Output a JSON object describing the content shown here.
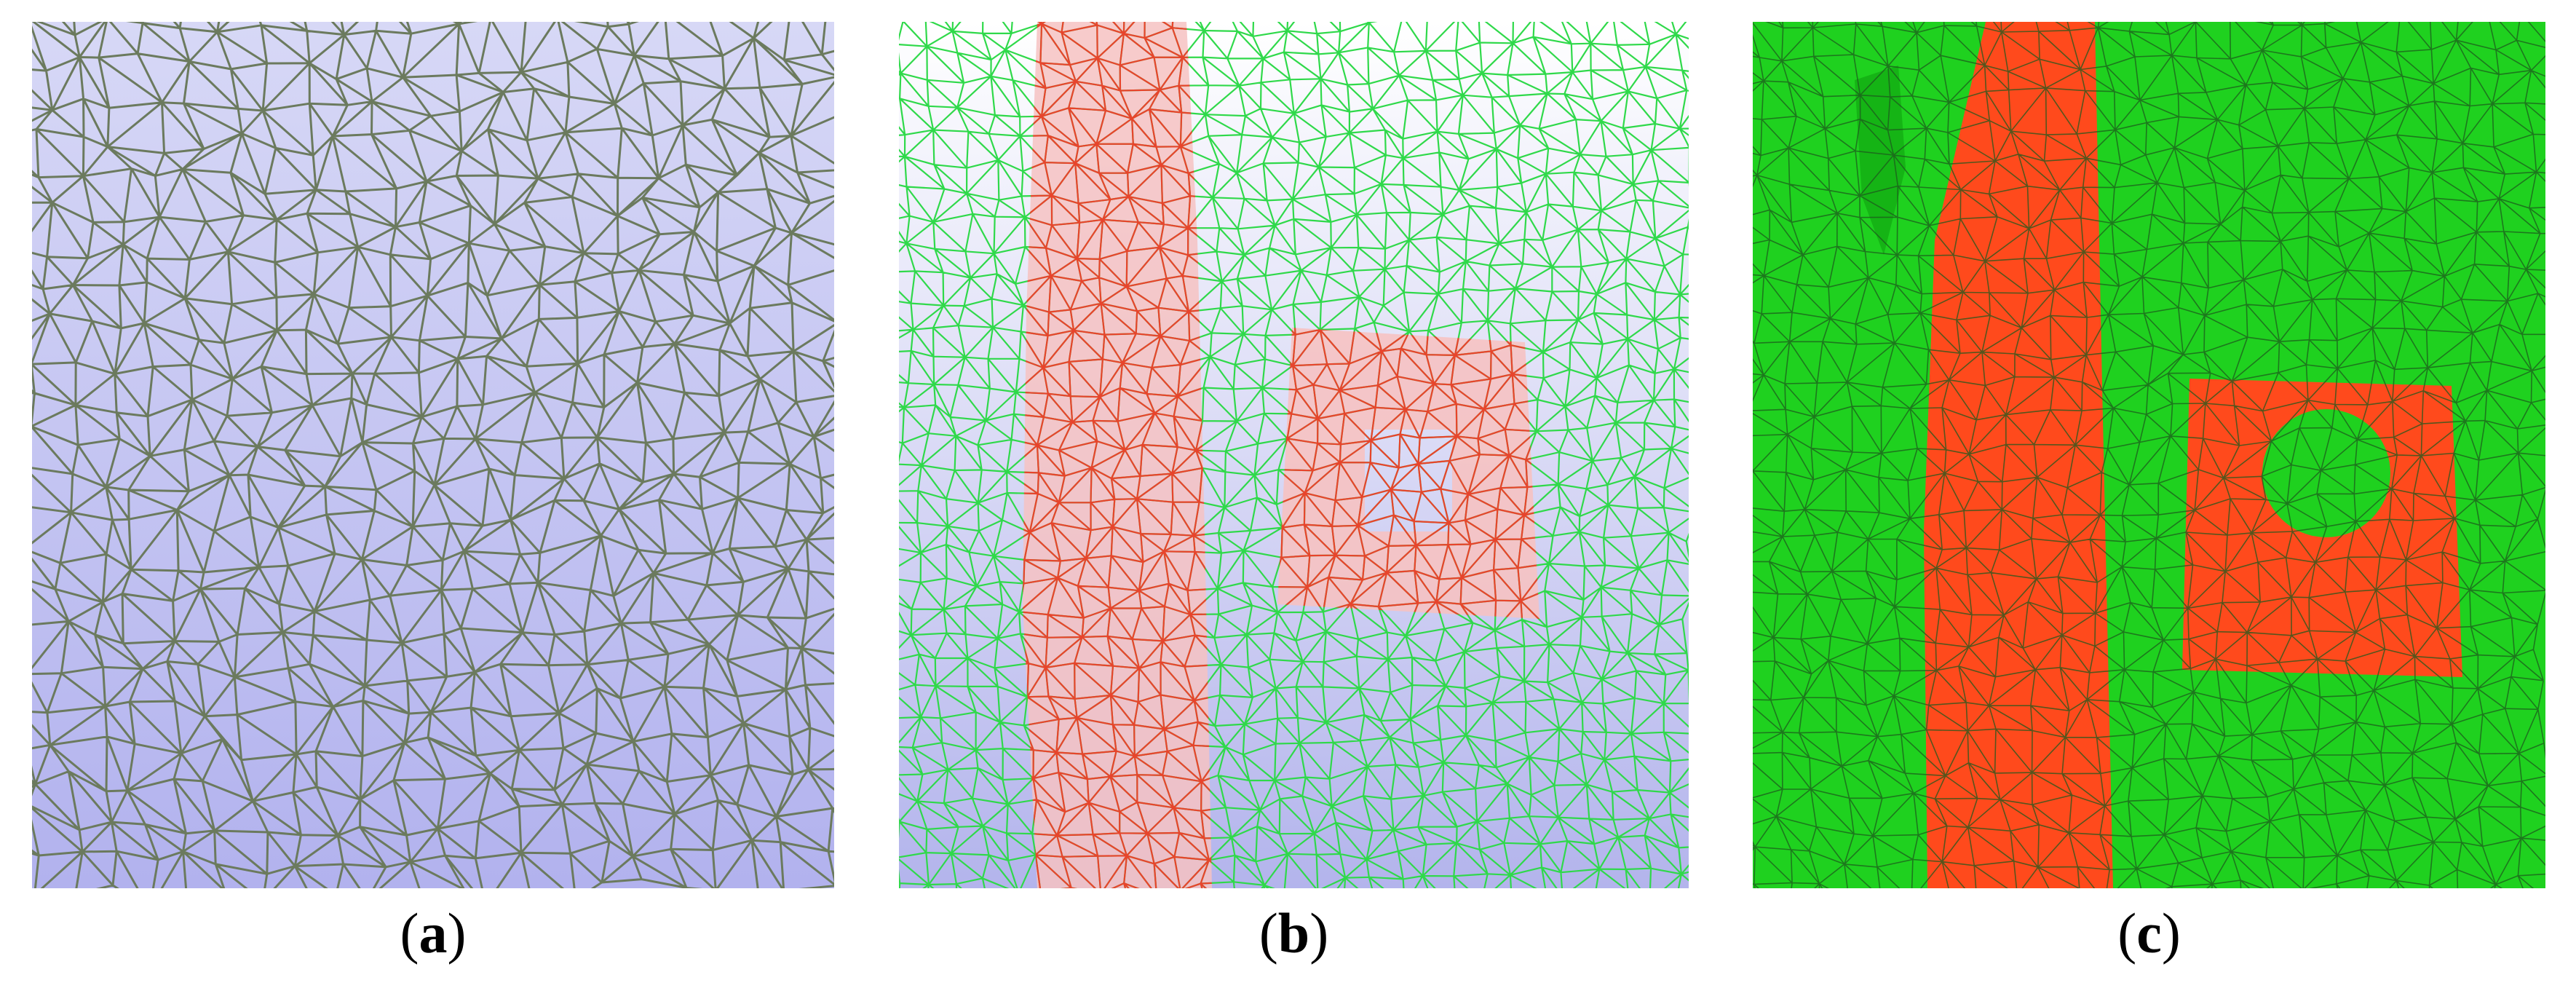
{
  "panels": [
    {
      "id": "a",
      "caption_open": "(",
      "caption_letter": "a",
      "caption_close": ")",
      "colors": {
        "background_top": "#d7d8f6",
        "background_bottom": "#b2b2ee",
        "mesh_line": "#6b7a5e"
      }
    },
    {
      "id": "b",
      "caption_open": "(",
      "caption_letter": "b",
      "caption_close": ")",
      "colors": {
        "background_top": "#ffffff",
        "background_bottom": "#b3b4ec",
        "mesh_line": "#2fd94a",
        "highlight_line": "#e8442c",
        "highlight_fill": "#f6c2c2"
      }
    },
    {
      "id": "c",
      "caption_open": "(",
      "caption_letter": "c",
      "caption_close": ")",
      "colors": {
        "surface": "#1fd11f",
        "mesh_line": "#1d5a1d",
        "highlight_fill": "#ff4a1c"
      }
    }
  ]
}
